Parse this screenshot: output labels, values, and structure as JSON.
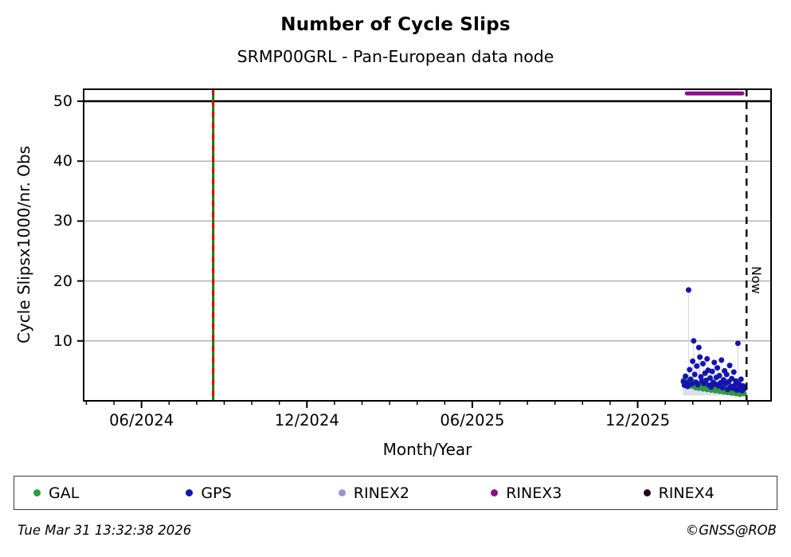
{
  "header": {
    "title": "Number of Cycle Slips",
    "subtitle": "SRMP00GRL - Pan-European data node"
  },
  "footer": {
    "timestamp": "Tue Mar 31 13:32:38 2026",
    "credit": "©GNSS@ROB"
  },
  "legend": {
    "items": [
      {
        "id": "gal",
        "label": "GAL",
        "color": "#2e9b3c"
      },
      {
        "id": "gps",
        "label": "GPS",
        "color": "#1414ad"
      },
      {
        "id": "rinex2",
        "label": "RINEX2",
        "color": "#9696d2"
      },
      {
        "id": "rinex3",
        "label": "RINEX3",
        "color": "#8b0f8b"
      },
      {
        "id": "rinex4",
        "label": "RINEX4",
        "color": "#22081f"
      }
    ]
  },
  "chart_data": {
    "type": "scatter",
    "title": "Number of Cycle Slips",
    "subtitle": "SRMP00GRL - Pan-European data node",
    "xlabel": "Month/Year",
    "ylabel": "Cycle Slipsx1000/nr. Obs",
    "x_unit": "months since 2024-01 (fractional)",
    "xlim": [
      2.9,
      27.84
    ],
    "ylim": [
      0,
      52
    ],
    "y_ticks": [
      10,
      20,
      30,
      40,
      50
    ],
    "x_major_ticks": [
      {
        "m": 5,
        "label": "06/2024"
      },
      {
        "m": 11,
        "label": "12/2024"
      },
      {
        "m": 17,
        "label": "06/2025"
      },
      {
        "m": 23,
        "label": "12/2025"
      }
    ],
    "x_minor_ticks": [
      3,
      4,
      5,
      6,
      7,
      8,
      9,
      10,
      11,
      12,
      13,
      14,
      15,
      16,
      17,
      18,
      19,
      20,
      21,
      22,
      23,
      24,
      25,
      26,
      27
    ],
    "grid": {
      "y_values": [
        10,
        20,
        30,
        40
      ],
      "color": "#b3b3b3"
    },
    "threshold_line": {
      "y": 50,
      "color": "#000000"
    },
    "event_line": {
      "m": 7.6,
      "solid_color": "#0f7d0f",
      "dash_color": "#e10000"
    },
    "now_line": {
      "m": 26.95,
      "label": "Now",
      "color": "#000000"
    },
    "rinex3_line": {
      "y": 51.3,
      "m_start": 24.78,
      "m_end": 26.8,
      "color": "#8b0f8b"
    },
    "stem_color": "#d9d9ef",
    "series": [
      {
        "name": "GAL",
        "color": "#2e9b3c",
        "x_start": 24.66,
        "x_step": 0.0373,
        "stems": false,
        "values": [
          3.4,
          2.9,
          3.1,
          2.6,
          3.3,
          2.8,
          3.0,
          2.5,
          2.9,
          3.2,
          2.4,
          2.8,
          2.2,
          3.0,
          2.6,
          2.1,
          2.7,
          2.3,
          2.9,
          2.0,
          2.5,
          2.2,
          2.7,
          1.9,
          2.4,
          2.1,
          2.6,
          1.8,
          2.3,
          2.0,
          2.5,
          1.7,
          2.2,
          1.9,
          2.4,
          1.6,
          2.1,
          1.8,
          2.3,
          1.5,
          2.0,
          1.7,
          2.2,
          1.4,
          1.9,
          1.6,
          2.1,
          1.3,
          1.8,
          1.5,
          2.0,
          1.2,
          1.7,
          1.4,
          1.9,
          1.1,
          1.6,
          1.3,
          1.8,
          1.2
        ]
      },
      {
        "name": "GPS",
        "color": "#1414ad",
        "x_start": 24.66,
        "x_step": 0.0373,
        "stems": true,
        "values": [
          3.2,
          2.6,
          4.1,
          3.0,
          2.4,
          18.5,
          5.2,
          3.6,
          2.8,
          6.6,
          10.0,
          4.4,
          3.1,
          5.8,
          2.7,
          8.9,
          7.3,
          4.0,
          3.3,
          6.2,
          2.9,
          4.6,
          3.4,
          7.0,
          5.1,
          2.6,
          3.8,
          2.3,
          4.9,
          3.1,
          6.4,
          2.8,
          3.9,
          5.5,
          2.5,
          4.2,
          3.0,
          6.8,
          2.2,
          3.5,
          5.0,
          2.9,
          4.4,
          1.9,
          3.2,
          5.9,
          2.4,
          3.7,
          2.1,
          4.8,
          2.6,
          3.3,
          1.8,
          9.6,
          2.8,
          2.2,
          3.6,
          1.7,
          2.5,
          2.0
        ]
      }
    ]
  }
}
